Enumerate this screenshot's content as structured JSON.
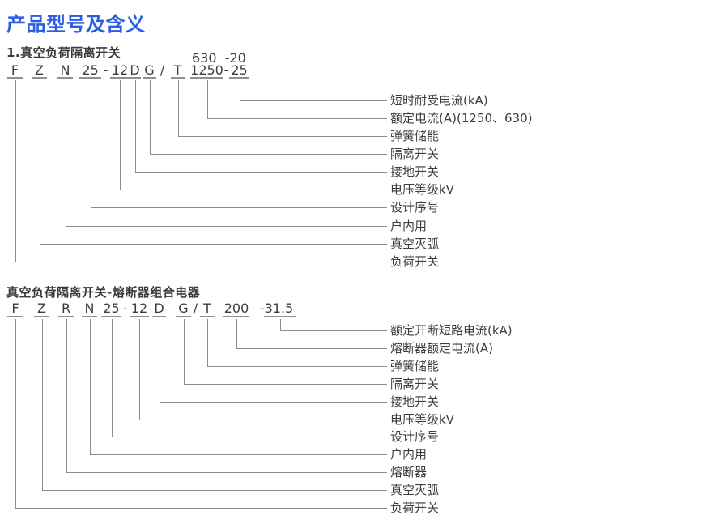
{
  "page": {
    "title": "产品型号及含义"
  },
  "diagram": {
    "sections": [
      {
        "heading": "1.真空负荷隔离开关",
        "code_top": "630  -20",
        "code_parts": [
          {
            "text": "F"
          },
          {
            "text": "Z"
          },
          {
            "text": "N"
          },
          {
            "text": "25"
          },
          {
            "text": "-",
            "plain": true
          },
          {
            "text": "12"
          },
          {
            "text": "D"
          },
          {
            "text": "G"
          },
          {
            "text": "/",
            "plain": true
          },
          {
            "text": "T"
          },
          {
            "text": "1250"
          },
          {
            "text": "-",
            "plain": true
          },
          {
            "text": "25"
          }
        ],
        "labels": [
          "短时耐受电流(kA)",
          "额定电流(A)(1250、630)",
          "弹簧储能",
          "隔离开关",
          "接地开关",
          "电压等级kV",
          "设计序号",
          "户内用",
          "真空灭弧",
          "负荷开关"
        ]
      },
      {
        "heading": "真空负荷隔离开关-熔断器组合电器",
        "code_top": "",
        "code_parts": [
          {
            "text": "F"
          },
          {
            "text": "Z"
          },
          {
            "text": "R"
          },
          {
            "text": "N"
          },
          {
            "text": "25"
          },
          {
            "text": "-",
            "plain": true
          },
          {
            "text": "12"
          },
          {
            "text": "D"
          },
          {
            "text": "G"
          },
          {
            "text": "/",
            "plain": true
          },
          {
            "text": "T"
          },
          {
            "text": "200"
          },
          {
            "text": "-31.5"
          }
        ],
        "labels": [
          "额定开断短路电流(kA)",
          "熔断器额定电流(A)",
          "弹簧储能",
          "隔离开关",
          "接地开关",
          "电压等级kV",
          "设计序号",
          "户内用",
          "熔断器",
          "真空灭弧",
          "负荷开关"
        ]
      }
    ]
  }
}
